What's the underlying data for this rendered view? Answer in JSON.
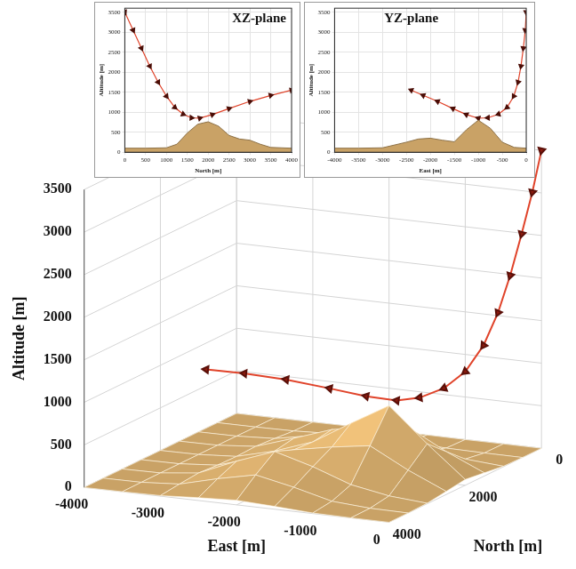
{
  "chart_data": [
    {
      "type": "line3d",
      "x_label": "East [m]",
      "y_label": "North [m]",
      "z_label": "Altitude [m]",
      "xlim": [
        -4000,
        0
      ],
      "xticks": [
        -4000,
        -3000,
        -2000,
        -1000,
        0
      ],
      "ylim": [
        0,
        4000
      ],
      "yticks": [
        0,
        2000,
        4000
      ],
      "zlim": [
        0,
        3500
      ],
      "zticks": [
        0,
        500,
        1000,
        1500,
        2000,
        2500,
        3000,
        3500
      ],
      "grid": true,
      "series": [
        {
          "type": "surface",
          "color": "#c9a266",
          "x": [
            -4000,
            -3500,
            -3000,
            -2500,
            -2000,
            -1500,
            -1000,
            -500,
            0
          ],
          "y": [
            0,
            500,
            1000,
            1500,
            2000,
            2500,
            3000,
            3500,
            4000
          ],
          "z": [
            [
              0,
              0,
              0,
              2,
              3,
              2,
              0,
              0,
              0
            ],
            [
              0,
              0,
              5,
              25,
              41,
              27,
              8,
              2,
              0
            ],
            [
              0,
              2,
              25,
              110,
              188,
              147,
              93,
              39,
              6
            ],
            [
              0,
              3,
              41,
              187,
              341,
              417,
              473,
              235,
              37
            ],
            [
              0,
              3,
              32,
              146,
              304,
              575,
              832,
              435,
              68
            ],
            [
              0,
              3,
              38,
              174,
              321,
              404,
              470,
              235,
              37
            ],
            [
              0,
              4,
              54,
              245,
              409,
              282,
              122,
              41,
              6
            ],
            [
              0,
              3,
              33,
              147,
              243,
              149,
              36,
              5,
              0
            ],
            [
              0,
              1,
              7,
              33,
              54,
              33,
              7,
              1,
              0
            ]
          ]
        },
        {
          "type": "line",
          "color": "#e0432a",
          "marker": "triangle",
          "x": [
            0,
            -20,
            -60,
            -110,
            -170,
            -260,
            -400,
            -580,
            -800,
            -1000,
            -1250,
            -1530,
            -1850,
            -2150,
            -2400
          ],
          "y": [
            0,
            200,
            400,
            600,
            800,
            1000,
            1200,
            1400,
            1600,
            1800,
            2100,
            2500,
            3000,
            3500,
            4000
          ],
          "z": [
            3500,
            3050,
            2600,
            2150,
            1750,
            1400,
            1120,
            950,
            860,
            850,
            940,
            1090,
            1270,
            1420,
            1550
          ]
        }
      ]
    },
    {
      "type": "line",
      "title": "XZ-plane",
      "x_label": "North [m]",
      "y_label": "Altitude [m]",
      "xlim": [
        0,
        4000
      ],
      "xticks": [
        0,
        500,
        1000,
        1500,
        2000,
        2500,
        3000,
        3500,
        4000
      ],
      "ylim": [
        0,
        3600
      ],
      "yticks": [
        0,
        500,
        1000,
        1500,
        2000,
        2500,
        3000,
        3500
      ],
      "grid": true,
      "series": [
        {
          "type": "area",
          "color": "#c9a266",
          "x": [
            0,
            500,
            1000,
            1250,
            1500,
            1750,
            2000,
            2250,
            2500,
            2750,
            3000,
            3250,
            3500,
            4000
          ],
          "values": [
            100,
            100,
            110,
            200,
            480,
            700,
            760,
            650,
            420,
            330,
            300,
            200,
            120,
            100
          ]
        },
        {
          "type": "line",
          "color": "#e0432a",
          "marker": "triangle",
          "x": [
            0,
            200,
            400,
            600,
            800,
            1000,
            1200,
            1400,
            1600,
            1800,
            2100,
            2500,
            3000,
            3500,
            4000
          ],
          "values": [
            3500,
            3050,
            2600,
            2150,
            1750,
            1400,
            1120,
            950,
            860,
            850,
            940,
            1090,
            1270,
            1420,
            1550
          ]
        }
      ]
    },
    {
      "type": "line",
      "title": "YZ-plane",
      "x_label": "East [m]",
      "y_label": "Altitude [m]",
      "xlim": [
        -4000,
        0
      ],
      "xticks": [
        -4000,
        -3500,
        -3000,
        -2500,
        -2000,
        -1500,
        -1000,
        -500,
        0
      ],
      "ylim": [
        0,
        3600
      ],
      "yticks": [
        0,
        500,
        1000,
        1500,
        2000,
        2500,
        3000,
        3500
      ],
      "grid": true,
      "series": [
        {
          "type": "area",
          "color": "#c9a266",
          "x": [
            -4000,
            -3500,
            -3000,
            -2500,
            -2250,
            -2000,
            -1750,
            -1500,
            -1250,
            -1000,
            -750,
            -500,
            -250,
            0
          ],
          "values": [
            100,
            100,
            110,
            250,
            330,
            350,
            300,
            260,
            560,
            800,
            600,
            250,
            120,
            100
          ]
        },
        {
          "type": "line",
          "color": "#e0432a",
          "marker": "triangle",
          "x": [
            0,
            -20,
            -60,
            -110,
            -170,
            -260,
            -400,
            -580,
            -800,
            -1000,
            -1250,
            -1530,
            -1850,
            -2150,
            -2400
          ],
          "values": [
            3500,
            3050,
            2600,
            2150,
            1750,
            1400,
            1120,
            950,
            860,
            850,
            940,
            1090,
            1270,
            1420,
            1550
          ]
        }
      ]
    }
  ]
}
